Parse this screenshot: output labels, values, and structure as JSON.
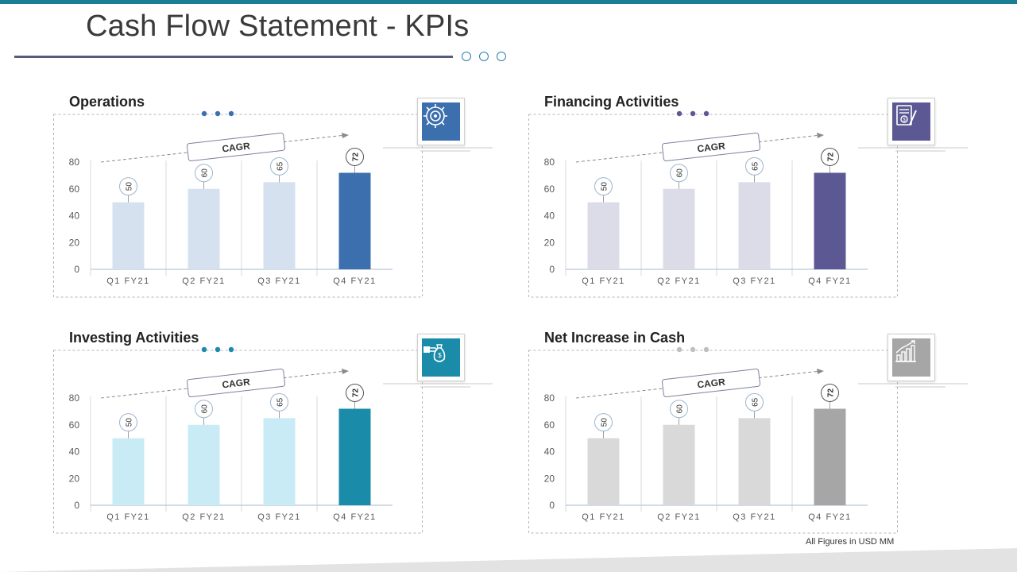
{
  "page": {
    "title": "Cash Flow Statement - KPIs",
    "footnote": "All Figures in USD MM",
    "accent_color": "#1a7f95"
  },
  "chart_data": [
    {
      "id": "operations",
      "type": "bar",
      "title": "Operations",
      "categories": [
        "Q1 FY21",
        "Q2 FY21",
        "Q3 FY21",
        "Q4 FY21"
      ],
      "values": [
        50,
        60,
        65,
        72
      ],
      "ylim": [
        0,
        80
      ],
      "yticks": [
        0,
        20,
        40,
        60,
        80
      ],
      "annotation": "CAGR",
      "icon": "gear-icon",
      "colors": {
        "light": "#d6e1ef",
        "dark": "#3c6fae",
        "dots": "#3c6fae",
        "icon_bg": "#3c6fae"
      }
    },
    {
      "id": "financing",
      "type": "bar",
      "title": "Financing Activities",
      "categories": [
        "Q1 FY21",
        "Q2 FY21",
        "Q3 FY21",
        "Q4 FY21"
      ],
      "values": [
        50,
        60,
        65,
        72
      ],
      "ylim": [
        0,
        80
      ],
      "yticks": [
        0,
        20,
        40,
        60,
        80
      ],
      "annotation": "CAGR",
      "icon": "document-dollar-icon",
      "colors": {
        "light": "#dcdce8",
        "dark": "#5c5893",
        "dots": "#5c5893",
        "icon_bg": "#5c5893"
      }
    },
    {
      "id": "investing",
      "type": "bar",
      "title": "Investing Activities",
      "categories": [
        "Q1 FY21",
        "Q2 FY21",
        "Q3 FY21",
        "Q4 FY21"
      ],
      "values": [
        50,
        60,
        65,
        72
      ],
      "ylim": [
        0,
        80
      ],
      "yticks": [
        0,
        20,
        40,
        60,
        80
      ],
      "annotation": "CAGR",
      "icon": "money-bag-hand-icon",
      "colors": {
        "light": "#c8ebf6",
        "dark": "#1a8ba8",
        "dots": "#1a8ba8",
        "icon_bg": "#1a8ba8"
      }
    },
    {
      "id": "net-increase",
      "type": "bar",
      "title": "Net Increase in Cash",
      "categories": [
        "Q1 FY21",
        "Q2 FY21",
        "Q3 FY21",
        "Q4 FY21"
      ],
      "values": [
        50,
        60,
        65,
        72
      ],
      "ylim": [
        0,
        80
      ],
      "yticks": [
        0,
        20,
        40,
        60,
        80
      ],
      "annotation": "CAGR",
      "icon": "growth-chart-icon",
      "colors": {
        "light": "#d9d9d9",
        "dark": "#a6a6a6",
        "dots": "#bfbfbf",
        "icon_bg": "#a6a6a6"
      }
    }
  ]
}
